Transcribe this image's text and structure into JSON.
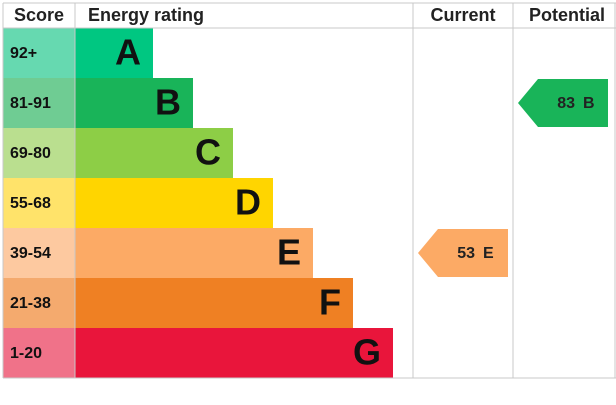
{
  "chart_data": {
    "type": "epc",
    "headers": {
      "score": "Score",
      "rating": "Energy rating",
      "current": "Current",
      "potential": "Potential"
    },
    "bands": [
      {
        "score": "92+",
        "letter": "A",
        "color": "#00c781",
        "light": "#66d9b0"
      },
      {
        "score": "81-91",
        "letter": "B",
        "color": "#19b459",
        "light": "#6fcc93"
      },
      {
        "score": "69-80",
        "letter": "C",
        "color": "#8dce46",
        "light": "#badf8f"
      },
      {
        "score": "55-68",
        "letter": "D",
        "color": "#ffd500",
        "light": "#ffe36a"
      },
      {
        "score": "39-54",
        "letter": "E",
        "color": "#fcaa65",
        "light": "#fdc9a0"
      },
      {
        "score": "21-38",
        "letter": "F",
        "color": "#ef8023",
        "light": "#f4aa6e"
      },
      {
        "score": "1-20",
        "letter": "G",
        "color": "#e9153b",
        "light": "#f07289"
      }
    ],
    "current": {
      "value": 53,
      "letter": "E"
    },
    "potential": {
      "value": 83,
      "letter": "B"
    }
  }
}
